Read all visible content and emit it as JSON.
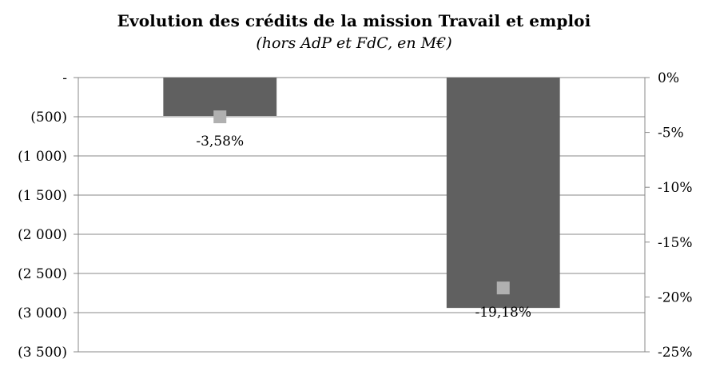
{
  "chart_data": {
    "type": "bar",
    "title": "Evolution des crédits de la mission Travail et emploi",
    "subtitle": "(hors AdP et FdC, en M€)",
    "categories": [
      "",
      ""
    ],
    "series": [
      {
        "type": "bar",
        "axis": "left",
        "values": [
          -490,
          -2940
        ],
        "color": "#606060"
      },
      {
        "type": "marker",
        "axis": "right",
        "values": [
          -3.58,
          -19.18
        ],
        "labels": [
          "-3,58%",
          "-19,18%"
        ],
        "color": "#b0b0b0"
      }
    ],
    "left_axis": {
      "ylim": [
        -3500,
        0
      ],
      "ticks": [
        0,
        -500,
        -1000,
        -1500,
        -2000,
        -2500,
        -3000,
        -3500
      ],
      "tick_labels": [
        "-",
        "(500)",
        "(1 000)",
        "(1 500)",
        "(2 000)",
        "(2 500)",
        "(3 000)",
        "(3 500)"
      ]
    },
    "right_axis": {
      "ylim": [
        -25,
        0
      ],
      "ticks": [
        0,
        -5,
        -10,
        -15,
        -20,
        -25
      ],
      "tick_labels": [
        "0%",
        "-5%",
        "-10%",
        "-15%",
        "-20%",
        "-25%"
      ]
    },
    "grid": true,
    "legend": "none",
    "colors": {
      "bar": "#606060",
      "marker": "#b0b0b0",
      "grid": "#888888",
      "axis": "#888888"
    }
  }
}
